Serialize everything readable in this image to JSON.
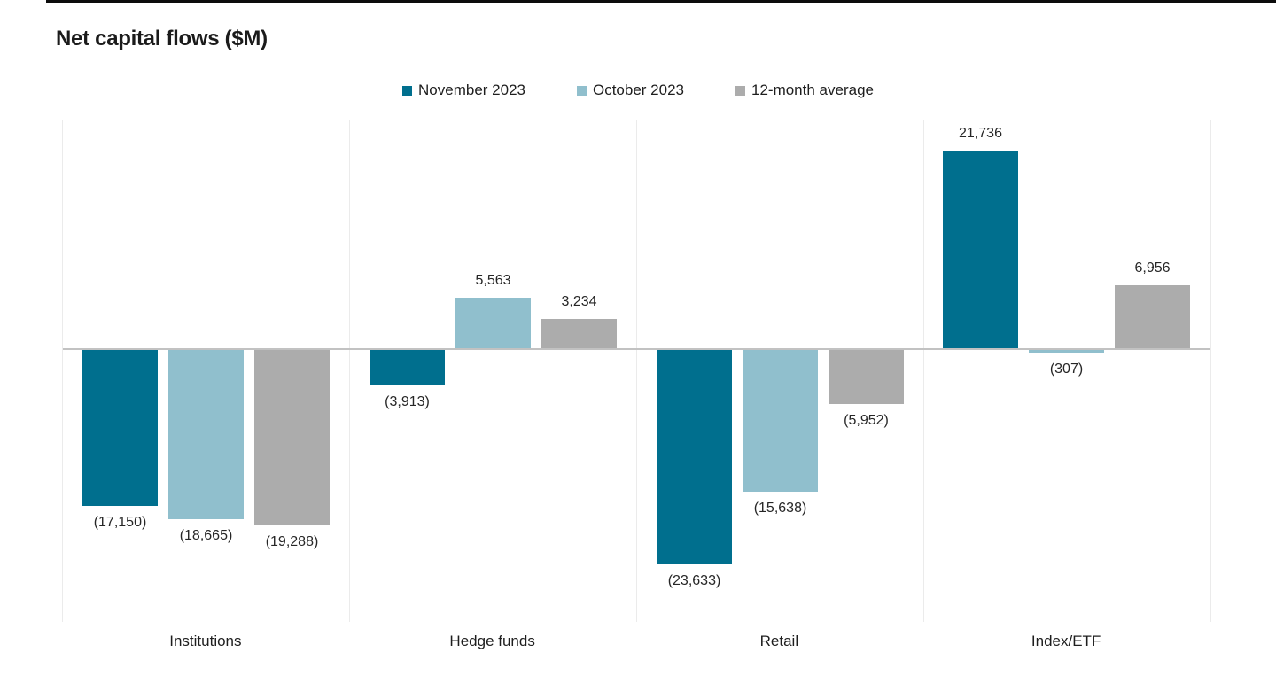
{
  "page": {
    "background": "#FFFFFF",
    "top_edge_color": "#0C0C0C"
  },
  "chart_data": {
    "type": "bar",
    "title": "Net capital flows ($M)",
    "xlabel": "",
    "ylabel": "",
    "categories": [
      "Institutions",
      "Hedge funds",
      "Retail",
      "Index/ETF"
    ],
    "series": [
      {
        "name": "November 2023",
        "color": "#006F8E",
        "values": [
          -17150,
          -3913,
          -23633,
          21736
        ],
        "labels": [
          "(17,150)",
          "(3,913)",
          "(23,633)",
          "21,736"
        ]
      },
      {
        "name": "October 2023",
        "color": "#90BFCD",
        "values": [
          -18665,
          5563,
          -15638,
          -307
        ],
        "labels": [
          "(18,665)",
          "5,563",
          "(15,638)",
          "(307)"
        ]
      },
      {
        "name": "12-month average",
        "color": "#ACACAC",
        "values": [
          -19288,
          3234,
          -5952,
          6956
        ],
        "labels": [
          "(19,288)",
          "3,234",
          "(5,952)",
          "6,956"
        ]
      }
    ],
    "ylim": [
      -30000,
      25300
    ],
    "legend_position": "top-center",
    "grid": "vertical-category-separators-only",
    "gridline_color": "#EBEBEB",
    "zero_line": true,
    "zero_line_color": "#C2C2C2",
    "y_ticks_visible": false,
    "value_label_format": "negatives-in-parentheses"
  }
}
